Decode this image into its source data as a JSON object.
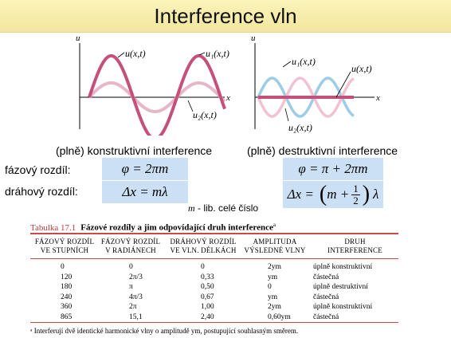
{
  "title": "Interference vln",
  "graphs": {
    "left": {
      "axis_y": "u",
      "axis_x": "x",
      "label_sum": "u(x,t)",
      "label_u1": "u₁(x,t)",
      "label_u2": "u₂(x,t)",
      "caption": "(plně) konstruktivní interference"
    },
    "right": {
      "axis_y": "u",
      "axis_x": "x",
      "label_sum": "u(x,t)",
      "label_u1": "u₁(x,t)",
      "label_u2": "u₂(x,t)",
      "caption": "(plně) destruktivní interference"
    },
    "colors": {
      "sum": "#c5507a",
      "wave_left": "#e8b6c9",
      "wave_blue": "#9ccde6",
      "wave_pink": "#f1c2d4",
      "axis": "#000000"
    }
  },
  "phase": {
    "label": "fázový rozdíl:",
    "left": "φ = 2πm",
    "right_prefix": "φ = π + 2πm"
  },
  "path": {
    "label": "dráhový rozdíl:",
    "left": "Δx = mλ",
    "right_prefix": "Δx =",
    "right_m": "m +",
    "num": "1",
    "den": "2",
    "right_suffix": "λ"
  },
  "m_note": {
    "sym": "m",
    "text": " - lib. celé číslo"
  },
  "table": {
    "tag": "Tabulka 17.1",
    "title": "Fázové rozdíly a jim odpovídající druh interference",
    "title_sup": "a",
    "headers": [
      [
        "FÁZOVÝ ROZDÍL",
        "VE STUPNÍCH"
      ],
      [
        "FÁZOVÝ ROZDÍL",
        "V RADIÁNECH"
      ],
      [
        "DRÁHOVÝ ROZDÍL",
        "VE VLN. DÉLKÁCH"
      ],
      [
        "AMPLITUDA",
        "VÝSLEDNÉ VLNY"
      ],
      [
        "DRUH",
        "INTERFERENCE"
      ]
    ],
    "rows": [
      [
        "0",
        "0",
        "0",
        "2ym",
        "úplně konstruktivní"
      ],
      [
        "120",
        "2π/3",
        "0,33",
        "ym",
        "částečná"
      ],
      [
        "180",
        "π",
        "0,50",
        "0",
        "úplně destruktivní"
      ],
      [
        "240",
        "4π/3",
        "0,67",
        "ym",
        "částečná"
      ],
      [
        "360",
        "2π",
        "1,00",
        "2ym",
        "úplně konstruktivní"
      ],
      [
        "865",
        "15,1",
        "2,40",
        "0,60ym",
        "částečná"
      ]
    ],
    "footnote": "ᵃ Interferují dvě identické harmonické vlny o amplitudě ym, postupující souhlasným směrem."
  }
}
